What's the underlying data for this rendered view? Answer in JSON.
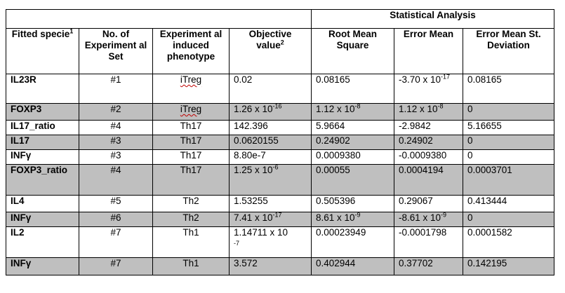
{
  "table": {
    "group_header": "Statistical Analysis",
    "columns": [
      {
        "label": "Fitted specie",
        "sup": "1"
      },
      {
        "label": "No. of Experiment al Set",
        "sup": ""
      },
      {
        "label": "Experiment al induced phenotype",
        "sup": ""
      },
      {
        "label": "Objective value",
        "sup": "2"
      },
      {
        "label": "Root Mean Square",
        "sup": ""
      },
      {
        "label": "Error Mean",
        "sup": ""
      },
      {
        "label": "Error Mean St. Deviation",
        "sup": ""
      }
    ],
    "rows": [
      {
        "specie": "IL23R",
        "set": "#1",
        "phenotype": "iTreg",
        "objective": "0.02",
        "rms": "0.08165",
        "error_mean": "-3.70 x 10",
        "error_mean_exp": "-17",
        "std": "0.08165",
        "shaded": false
      },
      {
        "specie": "FOXP3",
        "set": "#2",
        "phenotype": "iTreg",
        "objective": "1.26 x 10",
        "objective_exp": "-16",
        "rms": "1.12 x 10",
        "rms_exp": "-8",
        "error_mean": "1.12 x 10",
        "error_mean_exp_sup": "-8",
        "std": "0",
        "shaded": true
      },
      {
        "specie": "IL17_ratio",
        "set": "#4",
        "phenotype": "Th17",
        "objective": "142.396",
        "rms": "5.9664",
        "error_mean": "-2.9842",
        "std": "5.16655",
        "shaded": false
      },
      {
        "specie": "IL17",
        "set": "#3",
        "phenotype": "Th17",
        "objective": "0.0620155",
        "rms": "0.24902",
        "error_mean": "0.24902",
        "std": "0",
        "shaded": true
      },
      {
        "specie": "INFγ",
        "set": "#3",
        "phenotype": "Th17",
        "objective": "8.80e-7",
        "rms": "0.0009380",
        "error_mean": "-0.0009380",
        "std": "0",
        "shaded": false
      },
      {
        "specie": "FOXP3_ratio",
        "set": "#4",
        "phenotype": "Th17",
        "objective": "1.25 x 10",
        "objective_exp": "-6",
        "rms": "0.00055",
        "error_mean": "0.0004194",
        "std": "0.0003701",
        "shaded": true
      },
      {
        "specie": "IL4",
        "set": "#5",
        "phenotype": "Th2",
        "objective": "1.53255",
        "rms": "0.505396",
        "error_mean": "0.29067",
        "std": "0.413444",
        "shaded": false
      },
      {
        "specie": "INFγ",
        "set": "#6",
        "phenotype": "Th2",
        "objective": "7.41 x 10",
        "objective_exp": "-17",
        "rms": "8.61 x 10",
        "rms_exp": "-9",
        "error_mean": "-8.61 x 10",
        "error_mean_exp_sup": "-9",
        "std": "0",
        "shaded": true
      },
      {
        "specie": "IL2",
        "set": "#7",
        "phenotype": "Th1",
        "objective": "1.14711 x 10",
        "objective_wrap_exp": "-7",
        "rms": "0.00023949",
        "error_mean": "-0.0001798",
        "std": "0.0001582",
        "shaded": false
      },
      {
        "specie": "INFγ",
        "set": "#7",
        "phenotype": "Th1",
        "objective": "3.572",
        "rms": "0.402944",
        "error_mean": "0.37702",
        "std": "0.142195",
        "shaded": true
      }
    ]
  }
}
